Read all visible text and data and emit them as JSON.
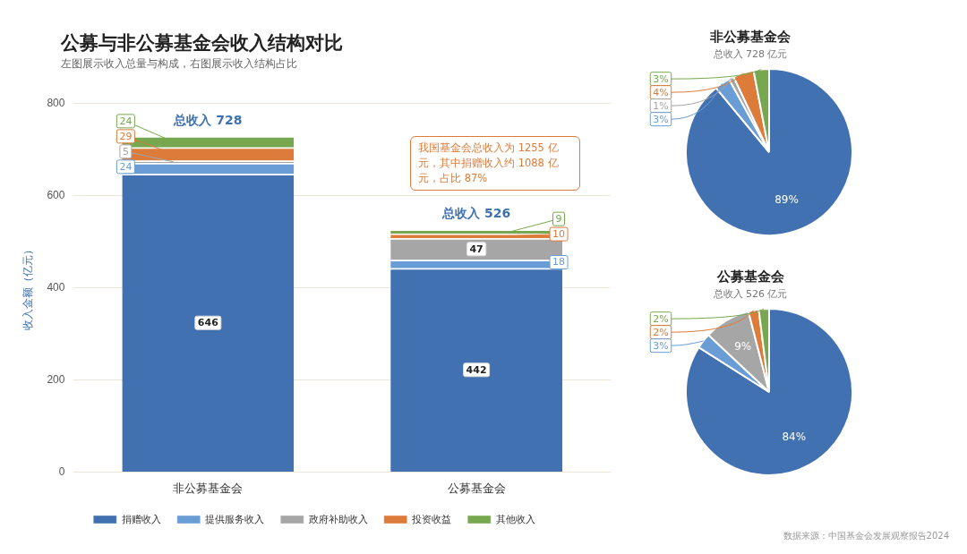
{
  "chart_data": [
    {
      "type": "bar",
      "title": "公募与非公募基金会收入结构对比",
      "subtitle": "左图展示收入总量与构成，右图展示收入结构占比",
      "ylabel": "收入金额（亿元）",
      "categories": [
        "非公募基金会",
        "公募基金会"
      ],
      "stacked": true,
      "series": [
        {
          "name": "捐赠收入",
          "color": "#4171b0",
          "values": [
            646,
            442
          ]
        },
        {
          "name": "提供服务收入",
          "color": "#6a9cd6",
          "values": [
            24,
            18
          ]
        },
        {
          "name": "政府补助收入",
          "color": "#a6a6a6",
          "values": [
            5,
            47
          ]
        },
        {
          "name": "投资收益",
          "color": "#dc7b3a",
          "values": [
            29,
            10
          ]
        },
        {
          "name": "其他收入",
          "color": "#77a84f",
          "values": [
            24,
            9
          ]
        }
      ],
      "ylim": [
        0,
        800
      ],
      "yticks": [
        0,
        200,
        400,
        600,
        800
      ],
      "grid": "y",
      "legend": "bottom",
      "data_labels": true,
      "totals": [
        "总收入 728",
        "总收入 526"
      ],
      "annotations": [
        "我国基金会总收入为 1255 亿元，其中捐赠收入约 1088 亿元，占比 87%",
        "数据来源：中国基金会发展观察报告2024"
      ]
    },
    {
      "type": "pie",
      "title": "非公募基金会",
      "subtitle": "总收入 728 亿元",
      "categories": [
        null,
        null,
        null,
        null,
        null
      ],
      "values": [
        89,
        3,
        1,
        4,
        3
      ],
      "colors": [
        "#4171b0",
        "#6a9cd6",
        "#a6a6a6",
        "#dc7b3a",
        "#77a84f"
      ],
      "value_labels": [
        "89%",
        "3%",
        "1%",
        "4%",
        "3%"
      ]
    },
    {
      "type": "pie",
      "title": "公募基金会",
      "subtitle": "总收入 526 亿元",
      "categories": [
        null,
        null,
        null,
        null,
        null
      ],
      "values": [
        84,
        3,
        9,
        2,
        2
      ],
      "colors": [
        "#4171b0",
        "#6a9cd6",
        "#a6a6a6",
        "#dc7b3a",
        "#77a84f"
      ],
      "value_labels": [
        "84%",
        "3%",
        "9%",
        "2%",
        "2%"
      ]
    }
  ]
}
